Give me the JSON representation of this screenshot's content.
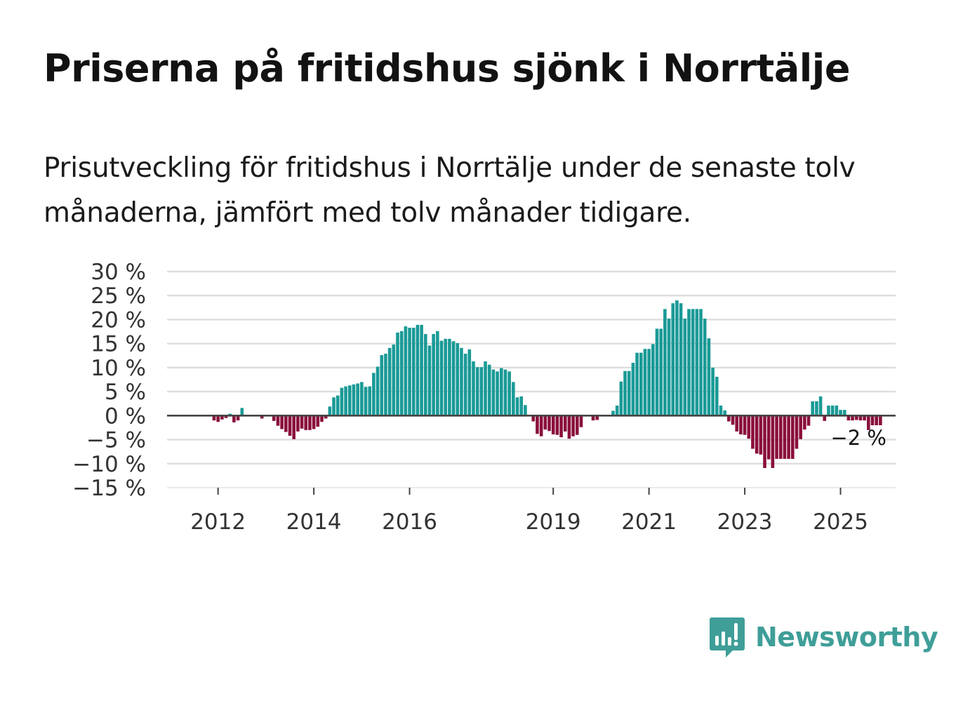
{
  "title": "Priserna på fritidshus sjönk i Norrtälje",
  "subtitle": "Prisutveckling för fritidshus i Norrtälje under de senaste tolv månaderna, jämfört med tolv månader tidigare.",
  "brand": {
    "name": "Newsworthy",
    "icon": "newsworthy-logo-icon",
    "color": "#3f9e98"
  },
  "colors": {
    "positive": "#1a9a96",
    "negative": "#8a0f3c",
    "grid": "#dddddd",
    "zero": "#444444"
  },
  "chart_data": {
    "type": "bar",
    "title": "Priserna på fritidshus sjönk i Norrtälje",
    "xlabel": "",
    "ylabel": "",
    "unit": "%",
    "ylim": [
      -15,
      30
    ],
    "yticks": [
      30,
      25,
      20,
      15,
      10,
      5,
      0,
      -5,
      -10,
      -15
    ],
    "ytick_labels": [
      "30 %",
      "25 %",
      "20 %",
      "15 %",
      "10 %",
      "5 %",
      "0 %",
      "−5 %",
      "−10 %",
      "−15 %"
    ],
    "xticks": [
      {
        "label": "2012",
        "index": 9
      },
      {
        "label": "2014",
        "index": 33
      },
      {
        "label": "2016",
        "index": 57
      },
      {
        "label": "2019",
        "index": 93
      },
      {
        "label": "2021",
        "index": 117
      },
      {
        "label": "2023",
        "index": 141
      },
      {
        "label": "2025",
        "index": 165
      }
    ],
    "start_period": "2011-04",
    "annotation": {
      "label": "−2 %",
      "value": -2
    },
    "values": [
      0,
      0,
      0,
      0,
      0,
      0,
      0,
      0,
      -1,
      -1.3,
      -0.8,
      -0.5,
      0.4,
      -1.4,
      -1,
      1.6,
      0,
      0,
      0,
      0,
      -0.6,
      0,
      0,
      -1.1,
      -2.1,
      -2.8,
      -3.4,
      -4.2,
      -4.9,
      -3.3,
      -2.7,
      -3,
      -3,
      -2.8,
      -2.3,
      -1.3,
      -0.6,
      1.9,
      3.8,
      4.2,
      5.8,
      6.1,
      6.3,
      6.5,
      6.7,
      7,
      6,
      6.1,
      8.9,
      10.2,
      12.6,
      12.9,
      14.1,
      14.8,
      17.3,
      17.6,
      18.6,
      18.3,
      18.3,
      18.9,
      18.9,
      17,
      14.6,
      17,
      17.6,
      15.6,
      16,
      16,
      15.5,
      15.1,
      14.1,
      12.9,
      13.8,
      11.3,
      10.1,
      10.1,
      11.3,
      10.6,
      9.6,
      9.2,
      9.9,
      9.6,
      9.2,
      7,
      3.8,
      4,
      2.2,
      0,
      -1.2,
      -3.8,
      -4.3,
      -2.9,
      -3.2,
      -3.9,
      -4,
      -4.5,
      -3.3,
      -4.8,
      -4.3,
      -4,
      -2.4,
      0,
      0,
      -1,
      -0.9,
      0,
      0,
      0,
      1,
      2.1,
      7.1,
      9.3,
      9.3,
      11,
      13.1,
      13.1,
      13.9,
      13.9,
      14.9,
      18.1,
      18.1,
      22.2,
      20.2,
      23.4,
      24,
      23.4,
      20.2,
      22.2,
      22.2,
      22.2,
      22.2,
      20.2,
      16.1,
      10,
      8.1,
      2.1,
      1.1,
      -1.2,
      -1.9,
      -3.3,
      -3.9,
      -4,
      -4.8,
      -6.9,
      -7.9,
      -8.1,
      -10.9,
      -9.1,
      -10.9,
      -9,
      -9,
      -9,
      -9,
      -9,
      -6.9,
      -4.9,
      -2.9,
      -2.1,
      3,
      3,
      4,
      -1.1,
      2.1,
      2.1,
      2.1,
      1.2,
      1.2,
      -1,
      -1,
      -0.9,
      -1,
      -1,
      -3,
      -2,
      -2,
      -2
    ]
  }
}
